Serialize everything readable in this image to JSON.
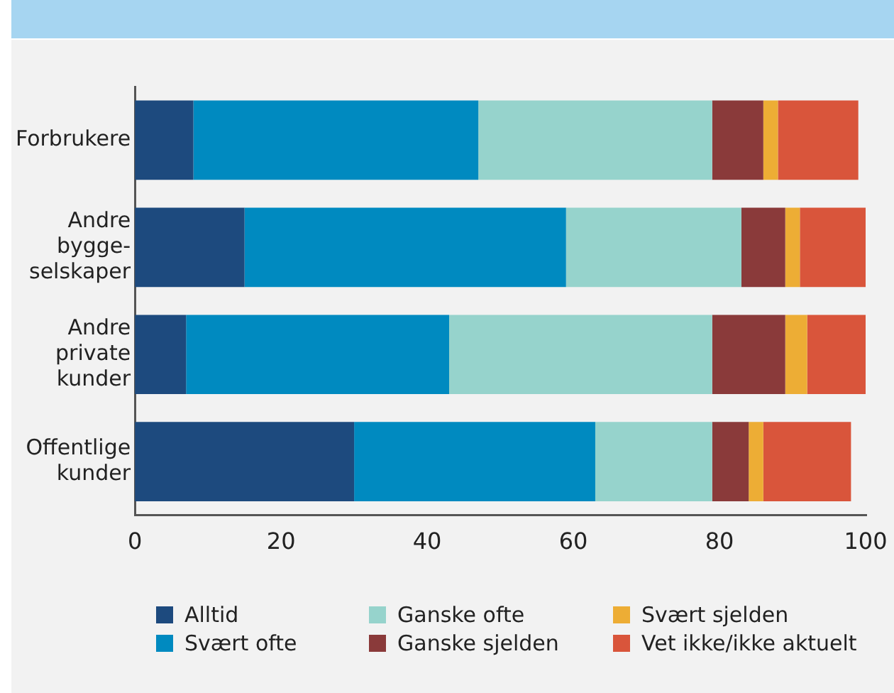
{
  "chart_data": {
    "type": "bar",
    "orientation": "horizontal",
    "stacked": true,
    "categories": [
      "Forbrukere",
      "Andre bygge-selskaper",
      "Andre private kunder",
      "Offentlige kunder"
    ],
    "series": [
      {
        "name": "Alltid",
        "color": "#1d4a7e",
        "values": [
          8,
          15,
          7,
          30
        ]
      },
      {
        "name": "Svært ofte",
        "color": "#008ac0",
        "values": [
          39,
          44,
          36,
          33
        ]
      },
      {
        "name": "Ganske ofte",
        "color": "#96d3cc",
        "values": [
          32,
          24,
          36,
          16
        ]
      },
      {
        "name": "Ganske sjelden",
        "color": "#8a3a3a",
        "values": [
          7,
          6,
          10,
          5
        ]
      },
      {
        "name": "Svært sjelden",
        "color": "#edad35",
        "values": [
          2,
          2,
          3,
          2
        ]
      },
      {
        "name": "Vet ikke/ikke aktuelt",
        "color": "#d9553b",
        "values": [
          11,
          9,
          8,
          12
        ]
      }
    ],
    "xlim": [
      0,
      100
    ],
    "xticks": [
      0,
      20,
      40,
      60,
      80,
      100
    ],
    "grid": false,
    "legend": "bottom"
  }
}
